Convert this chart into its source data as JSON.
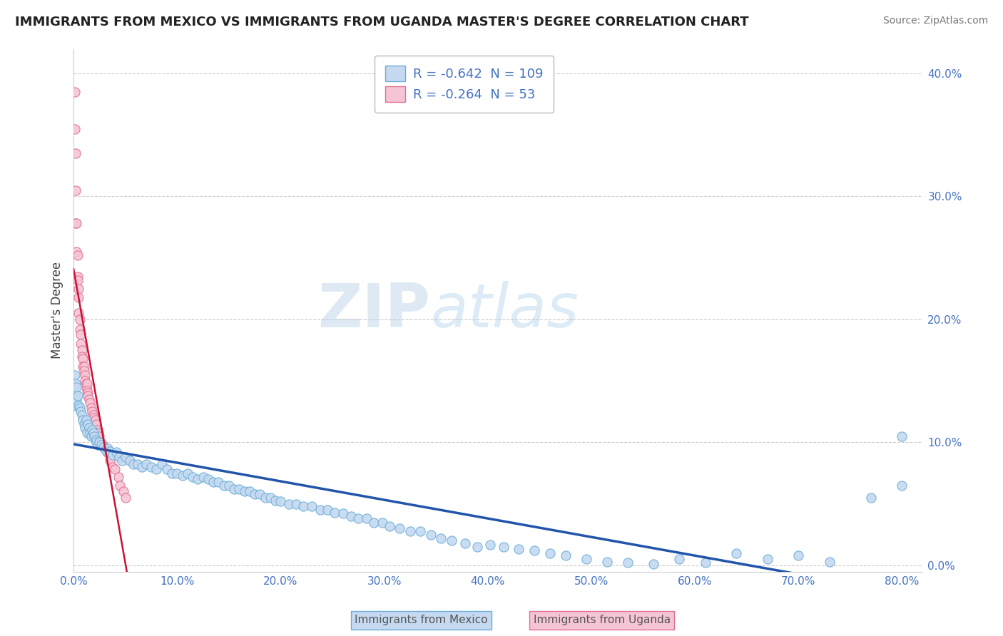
{
  "title": "IMMIGRANTS FROM MEXICO VS IMMIGRANTS FROM UGANDA MASTER'S DEGREE CORRELATION CHART",
  "source": "Source: ZipAtlas.com",
  "ylabel": "Master's Degree",
  "xlim": [
    0.0,
    0.82
  ],
  "ylim": [
    -0.005,
    0.42
  ],
  "xticks": [
    0.0,
    0.1,
    0.2,
    0.3,
    0.4,
    0.5,
    0.6,
    0.7,
    0.8
  ],
  "yticks": [
    0.0,
    0.1,
    0.2,
    0.3,
    0.4
  ],
  "legend_r_mexico": "-0.642",
  "legend_n_mexico": "109",
  "legend_r_uganda": "-0.264",
  "legend_n_uganda": "53",
  "mexico_color": "#c5d9f0",
  "uganda_color": "#f5c5d5",
  "mexico_edge": "#6aaed6",
  "uganda_edge": "#e07090",
  "regression_mexico_color": "#2255aa",
  "regression_uganda_color": "#cc1133",
  "watermark_zip": "ZIP",
  "watermark_atlas": "atlas",
  "mexico_x": [
    0.001,
    0.001,
    0.002,
    0.002,
    0.003,
    0.003,
    0.004,
    0.005,
    0.006,
    0.007,
    0.008,
    0.009,
    0.01,
    0.011,
    0.012,
    0.013,
    0.014,
    0.015,
    0.016,
    0.017,
    0.018,
    0.019,
    0.02,
    0.021,
    0.022,
    0.023,
    0.025,
    0.027,
    0.029,
    0.031,
    0.033,
    0.035,
    0.038,
    0.041,
    0.044,
    0.047,
    0.05,
    0.054,
    0.058,
    0.062,
    0.066,
    0.07,
    0.075,
    0.08,
    0.085,
    0.09,
    0.095,
    0.1,
    0.105,
    0.11,
    0.115,
    0.12,
    0.125,
    0.13,
    0.135,
    0.14,
    0.145,
    0.15,
    0.155,
    0.16,
    0.165,
    0.17,
    0.175,
    0.18,
    0.185,
    0.19,
    0.195,
    0.2,
    0.208,
    0.215,
    0.222,
    0.23,
    0.238,
    0.245,
    0.252,
    0.26,
    0.268,
    0.275,
    0.283,
    0.29,
    0.298,
    0.305,
    0.315,
    0.325,
    0.335,
    0.345,
    0.355,
    0.365,
    0.378,
    0.39,
    0.402,
    0.415,
    0.43,
    0.445,
    0.46,
    0.475,
    0.495,
    0.515,
    0.535,
    0.56,
    0.585,
    0.61,
    0.64,
    0.67,
    0.7,
    0.73,
    0.77,
    0.8,
    0.8
  ],
  "mexico_y": [
    0.155,
    0.14,
    0.148,
    0.13,
    0.145,
    0.135,
    0.138,
    0.13,
    0.128,
    0.125,
    0.122,
    0.118,
    0.115,
    0.112,
    0.118,
    0.108,
    0.115,
    0.112,
    0.108,
    0.105,
    0.11,
    0.108,
    0.105,
    0.102,
    0.1,
    0.098,
    0.1,
    0.098,
    0.096,
    0.094,
    0.095,
    0.093,
    0.09,
    0.092,
    0.088,
    0.085,
    0.088,
    0.085,
    0.082,
    0.082,
    0.08,
    0.082,
    0.08,
    0.078,
    0.082,
    0.078,
    0.075,
    0.075,
    0.073,
    0.075,
    0.072,
    0.07,
    0.072,
    0.07,
    0.068,
    0.068,
    0.065,
    0.065,
    0.062,
    0.062,
    0.06,
    0.06,
    0.058,
    0.058,
    0.055,
    0.055,
    0.053,
    0.052,
    0.05,
    0.05,
    0.048,
    0.048,
    0.045,
    0.045,
    0.043,
    0.042,
    0.04,
    0.038,
    0.038,
    0.035,
    0.035,
    0.032,
    0.03,
    0.028,
    0.028,
    0.025,
    0.022,
    0.02,
    0.018,
    0.015,
    0.017,
    0.015,
    0.013,
    0.012,
    0.01,
    0.008,
    0.005,
    0.003,
    0.002,
    0.001,
    0.005,
    0.002,
    0.01,
    0.005,
    0.008,
    0.003,
    0.055,
    0.105,
    0.065
  ],
  "uganda_x": [
    0.001,
    0.001,
    0.002,
    0.002,
    0.002,
    0.003,
    0.003,
    0.004,
    0.004,
    0.004,
    0.005,
    0.005,
    0.005,
    0.006,
    0.006,
    0.007,
    0.007,
    0.008,
    0.008,
    0.009,
    0.009,
    0.01,
    0.01,
    0.011,
    0.011,
    0.012,
    0.012,
    0.013,
    0.013,
    0.014,
    0.014,
    0.015,
    0.016,
    0.017,
    0.018,
    0.019,
    0.02,
    0.021,
    0.022,
    0.023,
    0.024,
    0.025,
    0.026,
    0.028,
    0.03,
    0.032,
    0.035,
    0.038,
    0.04,
    0.043,
    0.045,
    0.048,
    0.05
  ],
  "uganda_y": [
    0.385,
    0.355,
    0.335,
    0.305,
    0.278,
    0.278,
    0.255,
    0.252,
    0.235,
    0.232,
    0.225,
    0.218,
    0.205,
    0.2,
    0.192,
    0.188,
    0.18,
    0.175,
    0.17,
    0.168,
    0.162,
    0.162,
    0.158,
    0.155,
    0.15,
    0.148,
    0.145,
    0.148,
    0.142,
    0.14,
    0.138,
    0.135,
    0.132,
    0.128,
    0.125,
    0.122,
    0.12,
    0.118,
    0.115,
    0.11,
    0.108,
    0.105,
    0.1,
    0.098,
    0.095,
    0.092,
    0.085,
    0.08,
    0.078,
    0.072,
    0.065,
    0.06,
    0.055
  ]
}
